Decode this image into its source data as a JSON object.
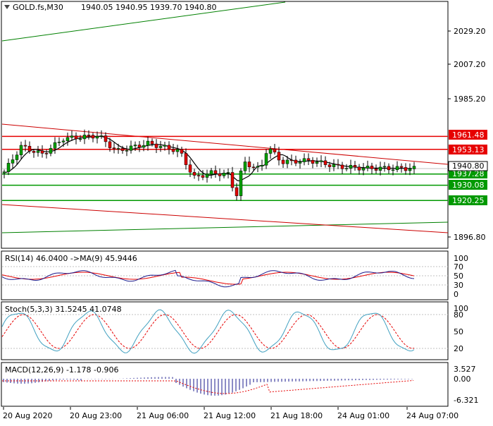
{
  "header": {
    "symbol": "GOLD.fs,M30",
    "ohlc": "1940.05 1940.95 1939.70 1940.80"
  },
  "main_axis": {
    "ticks": [
      "2029.20",
      "2007.20",
      "1985.20",
      "1896.80"
    ]
  },
  "levels": [
    {
      "label": "1961.48",
      "value": 1961.48,
      "color": "#e60000"
    },
    {
      "label": "1953.13",
      "value": 1953.13,
      "color": "#e60000"
    },
    {
      "label": "1937.28",
      "value": 1937.28,
      "color": "#009900"
    },
    {
      "label": "1930.08",
      "value": 1930.08,
      "color": "#009900"
    },
    {
      "label": "1920.25",
      "value": 1920.25,
      "color": "#009900"
    }
  ],
  "current_price": {
    "label": "1940.80",
    "value": 1940.8
  },
  "rsi": {
    "title": "RSI(14) 46.0400  ->MA(9) 45.9446",
    "ticks": [
      "100",
      "70",
      "50",
      "30",
      "0"
    ]
  },
  "stoch": {
    "title": "Stoch(5,3,3) 31.5245 41.0748",
    "ticks": [
      "100",
      "80",
      "50",
      "20"
    ]
  },
  "macd": {
    "title": "MACD(12,26,9) -1.178 -0.906",
    "ticks": [
      "3.527",
      "0.00",
      "-6.321"
    ]
  },
  "time_axis": {
    "labels": [
      "20 Aug 2020",
      "20 Aug 23:00",
      "21 Aug 06:00",
      "21 Aug 12:00",
      "21 Aug 18:00",
      "24 Aug 01:00",
      "24 Aug 07:00"
    ]
  },
  "colors": {
    "bull": "#00a000",
    "bear": "#e00000",
    "support": "#009900",
    "resistance": "#e60000",
    "ma": "#000000",
    "rsi": "#1a1a8c",
    "signal": "#e60000",
    "stoch_main": "#40a0c0"
  }
}
